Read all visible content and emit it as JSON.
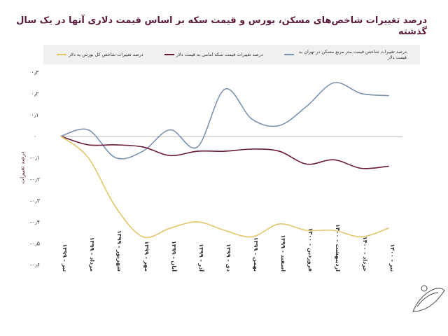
{
  "chart_data": {
    "type": "line",
    "title": "درصد تغییرات شاخص‌های مسکن، بورس و قیمت سکه بر اساس قیمت دلاری آنها در یک سال گذشته",
    "xlabel": "",
    "ylabel": "درصد تغییرات",
    "ylim": [
      -0.6,
      0.3
    ],
    "yticks": [
      0.3,
      0.2,
      0.1,
      0,
      -0.1,
      -0.2,
      -0.3,
      -0.4,
      -0.5,
      -0.6
    ],
    "ytick_labels": [
      "۰٫۳",
      "۰٫۲",
      "۰٫۱",
      "۰",
      "-۰٫۱",
      "-۰٫۲",
      "-۰٫۳",
      "-۰٫۴",
      "-۰٫۵",
      "-۰٫۶"
    ],
    "grid": false,
    "legend_position": "top",
    "categories": [
      "تیر - ۱۳۹۹",
      "مرداد - ۱۳۹۹",
      "شهریور - ۱۳۹۹",
      "مهر - ۱۳۹۹",
      "آبان - ۱۳۹۹",
      "آذر - ۱۳۹۹",
      "دی - ۱۳۹۹",
      "بهمن - ۱۳۹۹",
      "اسفند - ۱۳۹۹",
      "فروردین - ۱۴۰۰",
      "اردیبهشت - ۱۴۰۰",
      "خرداد - ۱۴۰۰",
      "تیر - ۱۴۰۰"
    ],
    "series": [
      {
        "name": "درصد تغییرات شاخص قیمت متر مربع مسکن در تهران به قیمت دلار",
        "color": "#7b93ad",
        "values": [
          0,
          0.03,
          -0.1,
          -0.07,
          0.03,
          -0.05,
          0.22,
          0.08,
          0.05,
          0.14,
          0.25,
          0.2,
          0.19
        ]
      },
      {
        "name": "درصد تغییرات قیمت سکه امامی به قیمت دلار",
        "color": "#6b1a3a",
        "values": [
          0,
          -0.04,
          -0.04,
          -0.05,
          -0.09,
          -0.07,
          -0.07,
          -0.06,
          -0.07,
          -0.13,
          -0.11,
          -0.15,
          -0.14
        ]
      },
      {
        "name": "درصد تغییرات شاخص کل بورس به دلار",
        "color": "#e3c66a",
        "values": [
          0,
          -0.1,
          -0.33,
          -0.47,
          -0.43,
          -0.4,
          -0.44,
          -0.47,
          -0.41,
          -0.44,
          -0.44,
          -0.47,
          -0.43
        ]
      }
    ]
  }
}
